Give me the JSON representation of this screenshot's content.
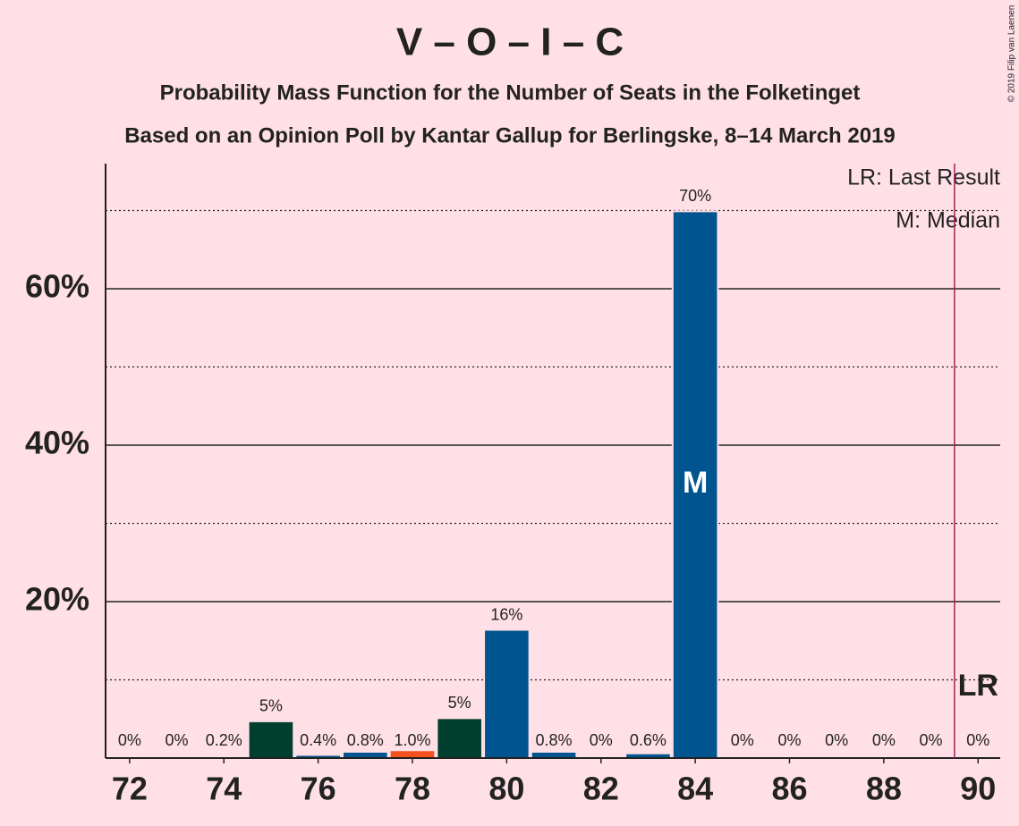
{
  "chart_data": {
    "type": "bar",
    "title": "V – O – I – C",
    "subtitle": [
      "Probability Mass Function for the Number of Seats in the Folketinget",
      "Based on an Opinion Poll by Kantar Gallup for Berlingske, 8–14 March 2019"
    ],
    "x": [
      72,
      73,
      74,
      75,
      76,
      77,
      78,
      79,
      80,
      81,
      82,
      83,
      84,
      85,
      86,
      87,
      88,
      89,
      90
    ],
    "values": [
      0,
      0,
      0.2,
      4.7,
      0.4,
      0.8,
      1.0,
      5.1,
      16.4,
      0.8,
      0,
      0.6,
      69.9,
      0,
      0,
      0,
      0,
      0,
      0
    ],
    "value_labels": [
      "0%",
      "0%",
      "0.2%",
      "5%",
      "0.4%",
      "0.8%",
      "1.0%",
      "5%",
      "16%",
      "0.8%",
      "0%",
      "0.6%",
      "70%",
      "0%",
      "0%",
      "0%",
      "0%",
      "0%",
      "0%"
    ],
    "colors": [
      "#00548f",
      "#00548f",
      "#00548f",
      "#003f2e",
      "#00548f",
      "#00548f",
      "#f4511e",
      "#003f2e",
      "#00548f",
      "#00548f",
      "#00548f",
      "#00548f",
      "#00548f",
      "#00548f",
      "#00548f",
      "#00548f",
      "#00548f",
      "#00548f",
      "#00548f"
    ],
    "xlim": [
      71.49,
      90.47
    ],
    "xticks": [
      72,
      74,
      76,
      78,
      80,
      82,
      84,
      86,
      88,
      90
    ],
    "ylim": [
      0,
      76
    ],
    "yticks": [
      {
        "value": 20,
        "label": "20%"
      },
      {
        "value": 40,
        "label": "40%"
      },
      {
        "value": 60,
        "label": "60%"
      }
    ],
    "minor_yticks": [
      10,
      30,
      50,
      70
    ],
    "median": 84,
    "median_label": "M",
    "last_result": 90,
    "last_result_label": "LR",
    "legend": [
      "LR: Last Result",
      "M: Median"
    ],
    "copyright": "© 2019 Filip van Laenen"
  }
}
